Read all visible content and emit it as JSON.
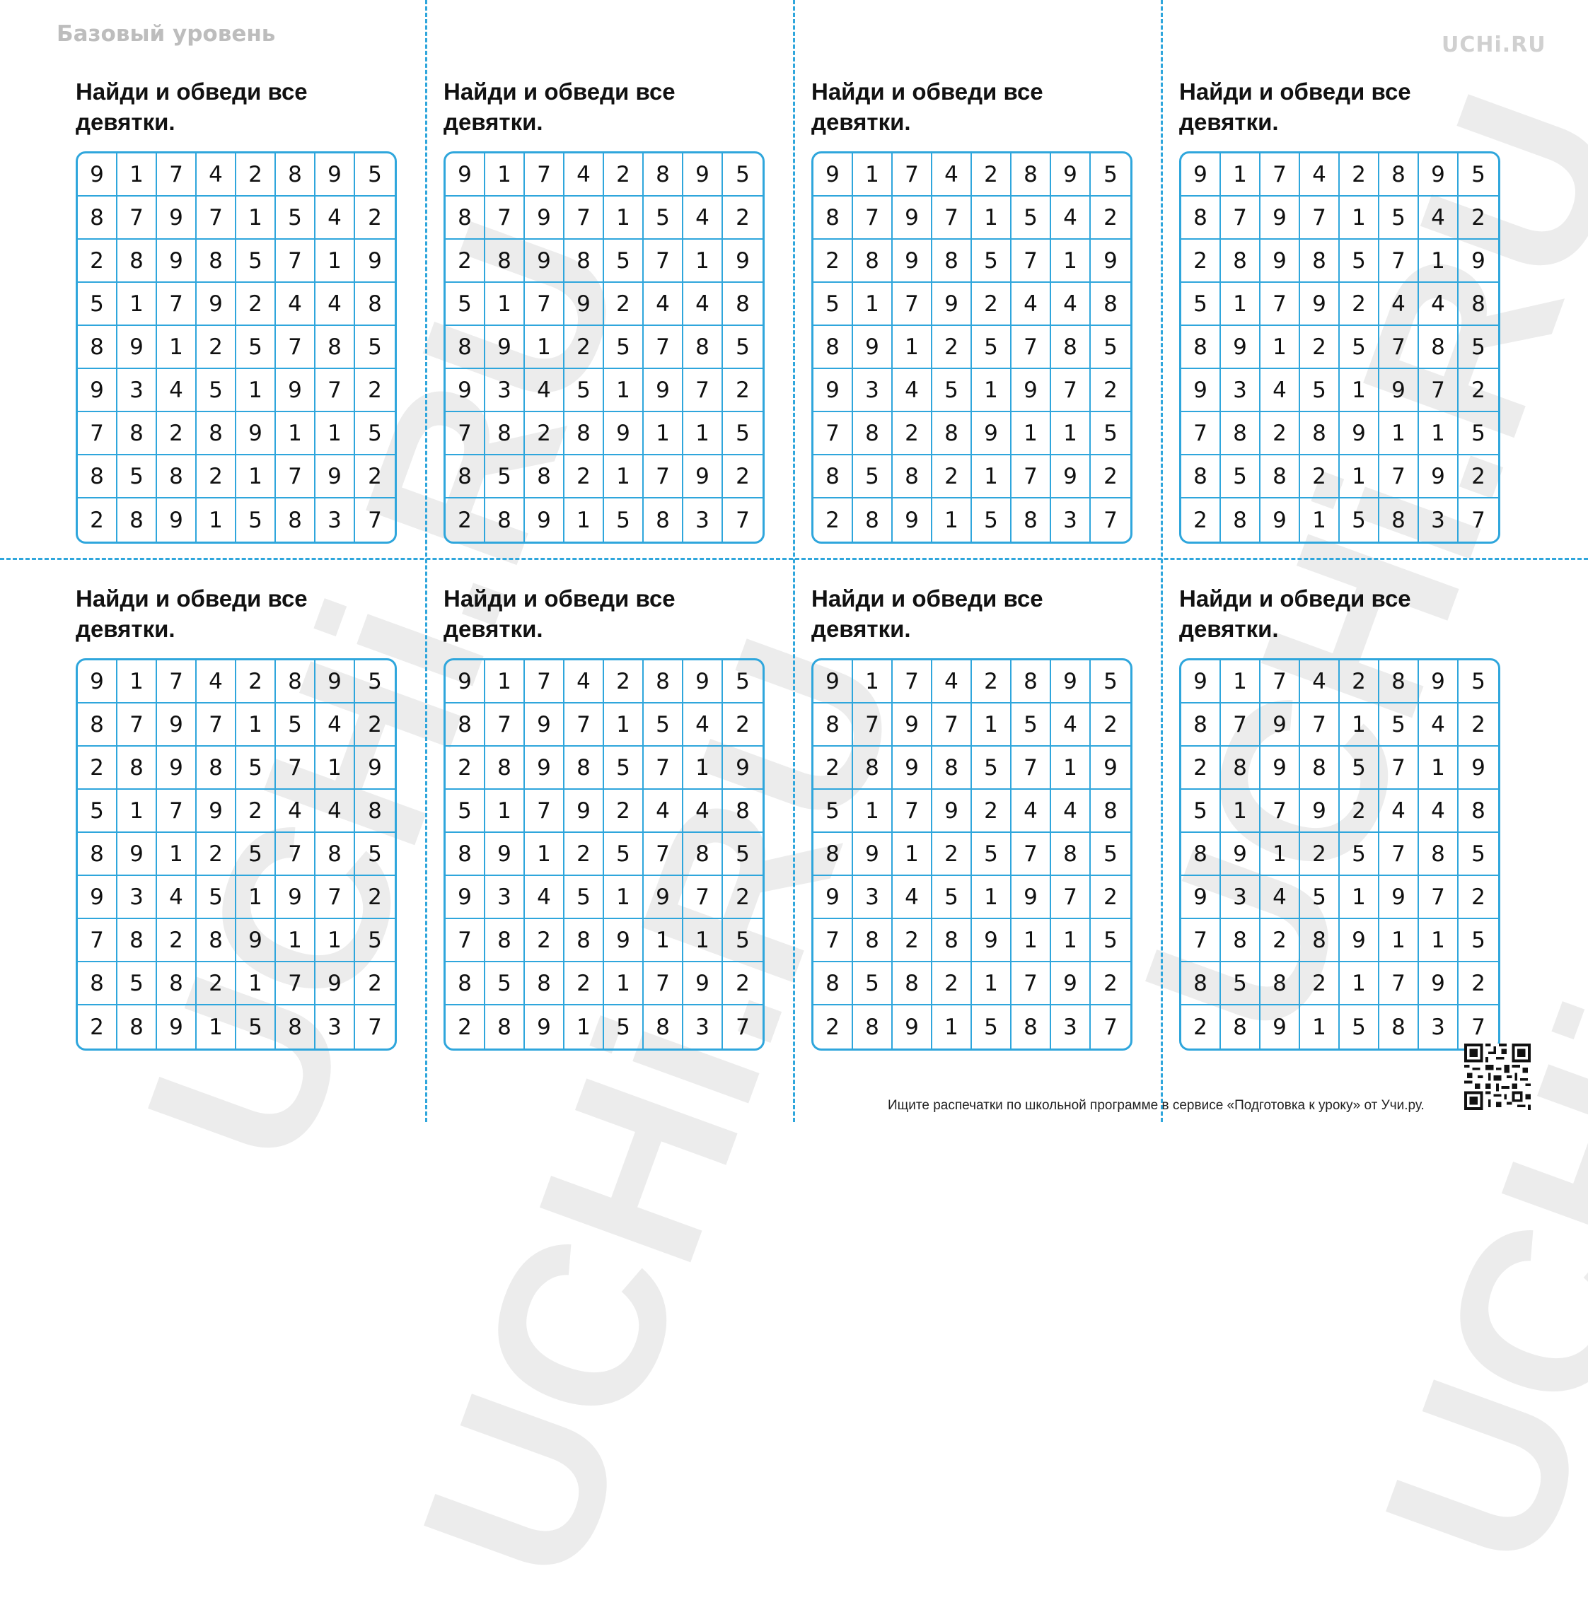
{
  "header": {
    "level": "Базовый уровень",
    "brand": "UCHi.RU"
  },
  "watermark": "UCHi.RU",
  "task": "Найди и обведи все девятки.",
  "grid": [
    [
      "9",
      "1",
      "7",
      "4",
      "2",
      "8",
      "9",
      "5"
    ],
    [
      "8",
      "7",
      "9",
      "7",
      "1",
      "5",
      "4",
      "2"
    ],
    [
      "2",
      "8",
      "9",
      "8",
      "5",
      "7",
      "1",
      "9"
    ],
    [
      "5",
      "1",
      "7",
      "9",
      "2",
      "4",
      "4",
      "8"
    ],
    [
      "8",
      "9",
      "1",
      "2",
      "5",
      "7",
      "8",
      "5"
    ],
    [
      "9",
      "3",
      "4",
      "5",
      "1",
      "9",
      "7",
      "2"
    ],
    [
      "7",
      "8",
      "2",
      "8",
      "9",
      "1",
      "1",
      "5"
    ],
    [
      "8",
      "5",
      "8",
      "2",
      "1",
      "7",
      "9",
      "2"
    ],
    [
      "2",
      "8",
      "9",
      "1",
      "5",
      "8",
      "3",
      "7"
    ]
  ],
  "footer": "Ищите распечатки по школьной программе в сервисе «Подготовка к уроку» от Учи.ру.",
  "colors": {
    "grid_line": "#2fa6dc",
    "cut_line": "#2fa6dc",
    "watermark": "#ececec"
  }
}
